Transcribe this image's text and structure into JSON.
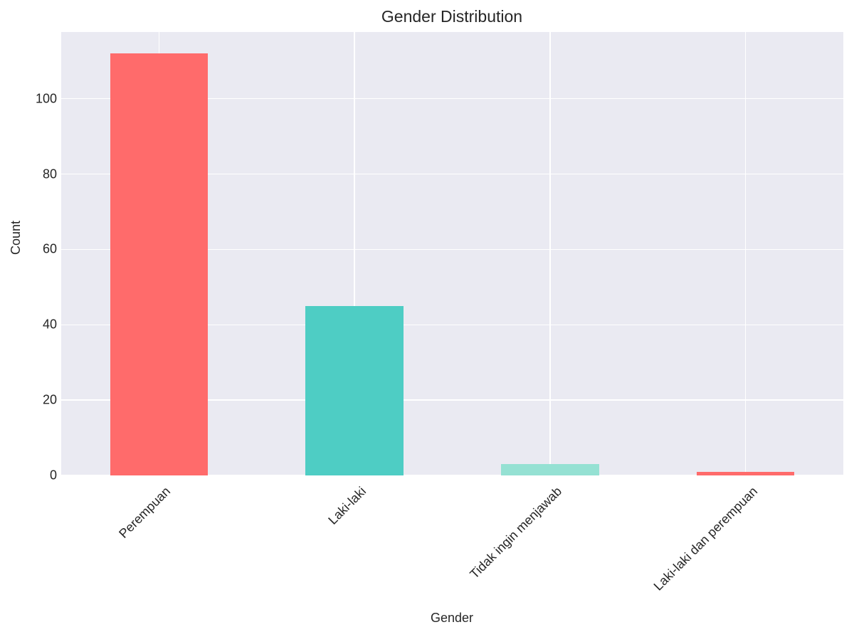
{
  "chart_data": {
    "type": "bar",
    "title": "Gender Distribution",
    "xlabel": "Gender",
    "ylabel": "Count",
    "categories": [
      "Perempuan",
      "Laki-laki",
      "Tidak ingin menjawab",
      "Laki-laki dan perempuan"
    ],
    "values": [
      112,
      45,
      3,
      1
    ],
    "colors": [
      "#ff6b6b",
      "#4ecdc4",
      "#95e1d3",
      "#ff6b6b"
    ],
    "yticks": [
      0,
      20,
      40,
      60,
      80,
      100
    ],
    "ylim": [
      0,
      117.7
    ],
    "grid": true,
    "legend": null
  },
  "labels": {
    "title": "Gender Distribution",
    "xlabel": "Gender",
    "ylabel": "Count",
    "yticks": [
      "0",
      "20",
      "40",
      "60",
      "80",
      "100"
    ],
    "xticks": [
      "Perempuan",
      "Laki-laki",
      "Tidak ingin menjawab",
      "Laki-laki dan perempuan"
    ]
  }
}
